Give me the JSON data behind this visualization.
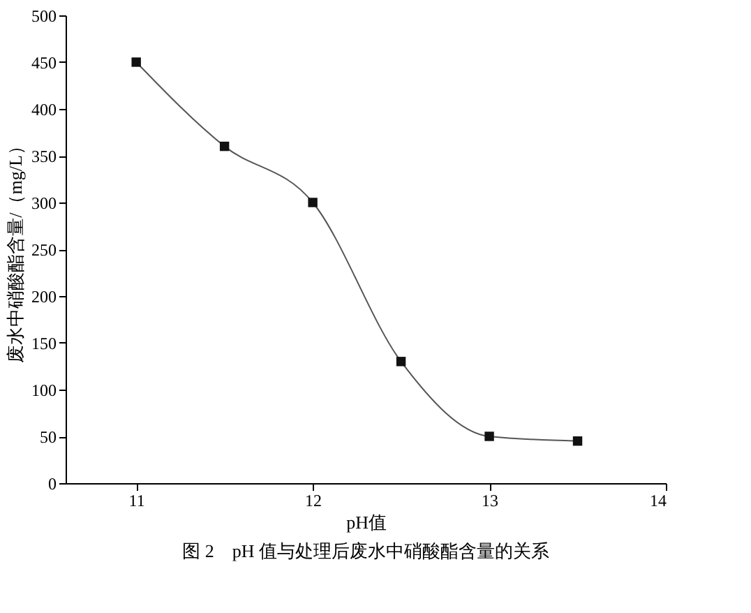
{
  "chart_data": {
    "type": "line",
    "xlabel": "pH值",
    "ylabel": "废水中硝酸酯含量/（mg/L）",
    "annotations": [
      "图 2　pH 值与处理后废水中硝酸酯含量的关系"
    ],
    "x": [
      11,
      11.5,
      12,
      12.5,
      13,
      13.5
    ],
    "series": [
      {
        "color": "#555555",
        "values": [
          450,
          360,
          300,
          130,
          50,
          45
        ]
      }
    ],
    "xlim": [
      10.6,
      14
    ],
    "xticks": [
      11,
      12,
      13,
      14
    ],
    "ylim": [
      0,
      500
    ],
    "yticks": [
      0,
      50,
      100,
      150,
      200,
      250,
      300,
      350,
      400,
      450,
      500
    ],
    "marker": "square",
    "line_style": "solid",
    "grid": false
  }
}
